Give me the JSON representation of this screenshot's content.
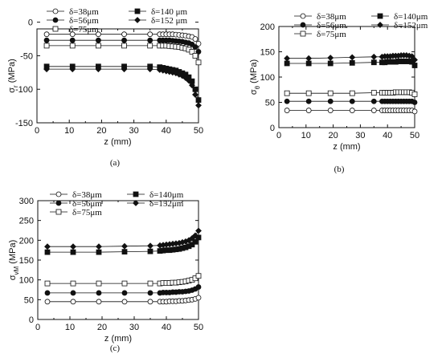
{
  "chart_data": [
    {
      "type": "line",
      "panel_label": "(a)",
      "xlabel": "z (mm)",
      "ylabel": "σr (MPa)",
      "ylabel_main": "σ",
      "ylabel_sub": "r",
      "xlim": [
        0,
        50
      ],
      "ylim": [
        -150,
        -10
      ],
      "xticks": [
        "0",
        "10",
        "20",
        "30",
        "40",
        "50"
      ],
      "yticks": [
        "-150",
        "-100",
        "-50",
        "0"
      ],
      "legend_position": "top",
      "series": [
        {
          "name": "δ=38μm",
          "marker": "open-circle",
          "x": [
            3,
            11,
            19,
            27,
            35,
            38,
            39,
            40,
            41,
            42,
            43,
            44,
            45,
            46,
            47,
            48,
            49,
            50
          ],
          "y": [
            -18,
            -18,
            -18,
            -18,
            -18,
            -18,
            -18,
            -18,
            -18,
            -18,
            -18.5,
            -19,
            -19.5,
            -20,
            -21,
            -22,
            -25,
            -32
          ]
        },
        {
          "name": "δ=56μm",
          "marker": "filled-circle",
          "x": [
            3,
            11,
            19,
            27,
            35,
            38,
            39,
            40,
            41,
            42,
            43,
            44,
            45,
            46,
            47,
            48,
            49,
            50
          ],
          "y": [
            -27,
            -27,
            -27,
            -27,
            -27,
            -27,
            -27,
            -27,
            -27,
            -27.5,
            -28,
            -28.5,
            -29,
            -30,
            -31,
            -33,
            -37,
            -44
          ]
        },
        {
          "name": "δ=75μm",
          "marker": "open-square",
          "x": [
            3,
            11,
            19,
            27,
            35,
            38,
            39,
            40,
            41,
            42,
            43,
            44,
            45,
            46,
            47,
            48,
            49,
            50
          ],
          "y": [
            -35,
            -35,
            -35,
            -35,
            -35,
            -35,
            -35,
            -35,
            -35.5,
            -36,
            -36.5,
            -37,
            -38,
            -39,
            -41,
            -44,
            -50,
            -60
          ]
        },
        {
          "name": "δ=140 μm",
          "marker": "filled-square",
          "x": [
            3,
            11,
            19,
            27,
            35,
            38,
            39,
            40,
            41,
            42,
            43,
            44,
            45,
            46,
            47,
            48,
            49,
            50
          ],
          "y": [
            -66,
            -66,
            -66,
            -66,
            -66,
            -67,
            -68,
            -69,
            -70,
            -71,
            -72,
            -74,
            -76,
            -78,
            -82,
            -88,
            -100,
            -116
          ]
        },
        {
          "name": "δ=152 μm",
          "marker": "filled-diamond",
          "x": [
            3,
            11,
            19,
            27,
            35,
            38,
            39,
            40,
            41,
            42,
            43,
            44,
            45,
            46,
            47,
            48,
            49,
            50
          ],
          "y": [
            -70,
            -70,
            -70,
            -70,
            -70,
            -71,
            -72,
            -73,
            -74,
            -75,
            -76,
            -78,
            -80,
            -83,
            -87,
            -94,
            -108,
            -124
          ]
        }
      ]
    },
    {
      "type": "line",
      "panel_label": "(b)",
      "xlabel": "z (mm)",
      "ylabel": "σθ (MPa)",
      "ylabel_main": "σ",
      "ylabel_sub": "θ",
      "xlim": [
        0,
        50
      ],
      "ylim": [
        0,
        200
      ],
      "xticks": [
        "0",
        "10",
        "20",
        "30",
        "40",
        "50"
      ],
      "yticks": [
        "0",
        "50",
        "100",
        "150",
        "200"
      ],
      "legend_position": "top",
      "series": [
        {
          "name": "δ=38μm",
          "marker": "open-circle",
          "x": [
            3,
            11,
            19,
            27,
            35,
            38,
            39,
            40,
            41,
            42,
            43,
            44,
            45,
            46,
            47,
            48,
            49,
            50
          ],
          "y": [
            34,
            34,
            34,
            34,
            34,
            34,
            34,
            34,
            34,
            34,
            34,
            34,
            34,
            34,
            34,
            34,
            34,
            32
          ]
        },
        {
          "name": "δ=56μm",
          "marker": "filled-circle",
          "x": [
            3,
            11,
            19,
            27,
            35,
            38,
            39,
            40,
            41,
            42,
            43,
            44,
            45,
            46,
            47,
            48,
            49,
            50
          ],
          "y": [
            52,
            52,
            52,
            52,
            52,
            52,
            52,
            52,
            52,
            52,
            52,
            52,
            52,
            52,
            52,
            52,
            52,
            50
          ]
        },
        {
          "name": "δ=75μm",
          "marker": "open-square",
          "x": [
            3,
            11,
            19,
            27,
            35,
            38,
            39,
            40,
            41,
            42,
            43,
            44,
            45,
            46,
            47,
            48,
            49,
            50
          ],
          "y": [
            68,
            68,
            68,
            68,
            69,
            69,
            69,
            69,
            69,
            69,
            70,
            70,
            70,
            70,
            70,
            70,
            69,
            66
          ]
        },
        {
          "name": "δ=140μm",
          "marker": "filled-square",
          "x": [
            3,
            11,
            19,
            27,
            35,
            38,
            39,
            40,
            41,
            42,
            43,
            44,
            45,
            46,
            47,
            48,
            49,
            50
          ],
          "y": [
            127,
            127,
            127,
            128,
            129,
            129,
            129,
            130,
            130,
            130,
            130,
            131,
            131,
            131,
            131,
            131,
            130,
            123
          ]
        },
        {
          "name": "δ=152μm",
          "marker": "filled-diamond",
          "x": [
            3,
            11,
            19,
            27,
            35,
            38,
            39,
            40,
            41,
            42,
            43,
            44,
            45,
            46,
            47,
            48,
            49,
            50
          ],
          "y": [
            137,
            137,
            138,
            139,
            140,
            140,
            141,
            141,
            141,
            142,
            142,
            142,
            143,
            143,
            143,
            142,
            141,
            134
          ]
        }
      ]
    },
    {
      "type": "line",
      "panel_label": "(c)",
      "xlabel": "z (mm)",
      "ylabel": "σvM (MPa)",
      "ylabel_main": "σ",
      "ylabel_sub": "vM",
      "xlim": [
        0,
        50
      ],
      "ylim": [
        0,
        300
      ],
      "xticks": [
        "0",
        "10",
        "20",
        "30",
        "40",
        "50"
      ],
      "yticks": [
        "0",
        "50",
        "100",
        "150",
        "200",
        "250",
        "300"
      ],
      "legend_position": "top",
      "series": [
        {
          "name": "δ=38μm",
          "marker": "open-circle",
          "x": [
            3,
            11,
            19,
            27,
            35,
            38,
            39,
            40,
            41,
            42,
            43,
            44,
            45,
            46,
            47,
            48,
            49,
            50
          ],
          "y": [
            45,
            45,
            45,
            45,
            45,
            45,
            45,
            45,
            46,
            46,
            46,
            47,
            47,
            48,
            49,
            50,
            52,
            55
          ]
        },
        {
          "name": "δ=56μm",
          "marker": "filled-circle",
          "x": [
            3,
            11,
            19,
            27,
            35,
            38,
            39,
            40,
            41,
            42,
            43,
            44,
            45,
            46,
            47,
            48,
            49,
            50
          ],
          "y": [
            67,
            67,
            67,
            67,
            67,
            67,
            68,
            68,
            68,
            69,
            69,
            70,
            70,
            71,
            72,
            74,
            77,
            82
          ]
        },
        {
          "name": "δ=75μm",
          "marker": "open-square",
          "x": [
            3,
            11,
            19,
            27,
            35,
            38,
            39,
            40,
            41,
            42,
            43,
            44,
            45,
            46,
            47,
            48,
            49,
            50
          ],
          "y": [
            91,
            91,
            91,
            91,
            91,
            91,
            92,
            92,
            92,
            93,
            93,
            94,
            95,
            96,
            98,
            100,
            104,
            110
          ]
        },
        {
          "name": "δ=140μm",
          "marker": "filled-square",
          "x": [
            3,
            11,
            19,
            27,
            35,
            38,
            39,
            40,
            41,
            42,
            43,
            44,
            45,
            46,
            47,
            48,
            49,
            50
          ],
          "y": [
            170,
            170,
            170,
            171,
            172,
            173,
            174,
            175,
            175,
            176,
            177,
            178,
            180,
            182,
            185,
            189,
            196,
            207
          ]
        },
        {
          "name": "δ=152μm",
          "marker": "filled-diamond",
          "x": [
            3,
            11,
            19,
            27,
            35,
            38,
            39,
            40,
            41,
            42,
            43,
            44,
            45,
            46,
            47,
            48,
            49,
            50
          ],
          "y": [
            184,
            184,
            184,
            185,
            186,
            187,
            188,
            189,
            190,
            191,
            192,
            193,
            195,
            197,
            200,
            205,
            212,
            224
          ]
        }
      ]
    }
  ]
}
